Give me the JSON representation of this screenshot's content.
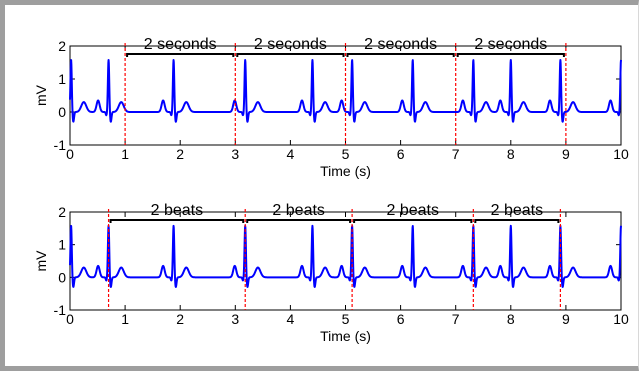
{
  "chart_data": [
    {
      "type": "line",
      "xlabel": "Time (s)",
      "ylabel": "mV",
      "xlim": [
        0,
        10
      ],
      "ylim": [
        -1,
        2
      ],
      "xticks": [
        "0",
        "1",
        "2",
        "3",
        "4",
        "5",
        "6",
        "7",
        "8",
        "9",
        "10"
      ],
      "yticks": [
        "-1",
        "0",
        "1",
        "2"
      ],
      "series_color": "#0000ff",
      "marker_color": "#ff0000",
      "r_peaks": [
        0.02,
        0.7,
        1.88,
        3.18,
        4.4,
        5.12,
        6.22,
        7.32,
        8.0,
        8.9,
        10.0
      ],
      "annotations": [
        {
          "label": "2 seconds",
          "x_start": 1,
          "x_end": 3
        },
        {
          "label": "2 seconds",
          "x_start": 3,
          "x_end": 5
        },
        {
          "label": "2 seconds",
          "x_start": 5,
          "x_end": 7
        },
        {
          "label": "2 seconds",
          "x_start": 7,
          "x_end": 9
        }
      ],
      "markers": [
        1,
        3,
        5,
        7,
        9
      ]
    },
    {
      "type": "line",
      "xlabel": "Time (s)",
      "ylabel": "mV",
      "xlim": [
        0,
        10
      ],
      "ylim": [
        -1,
        2
      ],
      "xticks": [
        "0",
        "1",
        "2",
        "3",
        "4",
        "5",
        "6",
        "7",
        "8",
        "9",
        "10"
      ],
      "yticks": [
        "-1",
        "0",
        "1",
        "2"
      ],
      "series_color": "#0000ff",
      "marker_color": "#ff0000",
      "r_peaks": [
        0.02,
        0.7,
        1.88,
        3.18,
        4.4,
        5.12,
        6.22,
        7.32,
        8.0,
        8.9,
        10.0
      ],
      "annotations": [
        {
          "label": "2 beats",
          "x_start": 0.7,
          "x_end": 3.18
        },
        {
          "label": "2 beats",
          "x_start": 3.18,
          "x_end": 5.12
        },
        {
          "label": "2 beats",
          "x_start": 5.12,
          "x_end": 7.32
        },
        {
          "label": "2 beats",
          "x_start": 7.32,
          "x_end": 8.9
        }
      ],
      "markers": [
        0.7,
        3.18,
        5.12,
        7.32,
        8.9
      ]
    }
  ]
}
